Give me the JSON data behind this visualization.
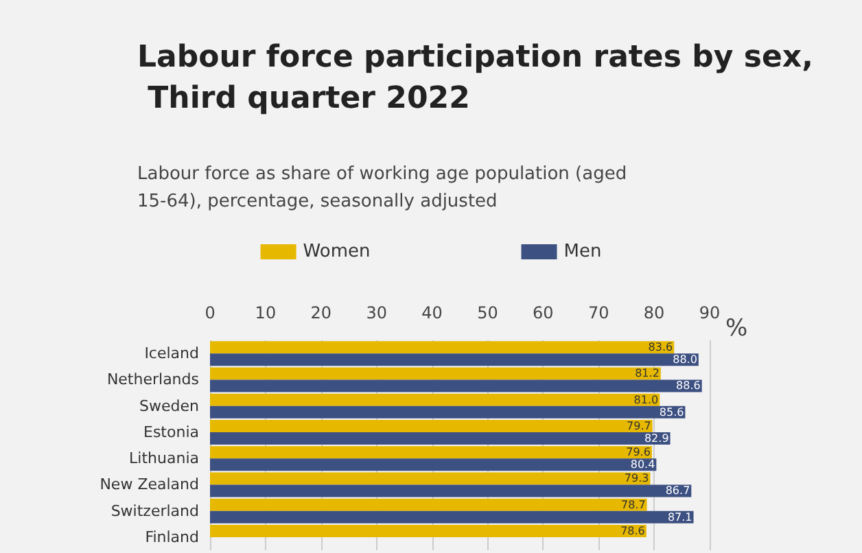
{
  "chart_data": {
    "type": "bar",
    "orientation": "horizontal",
    "title": "Labour force participation rates by sex, Third quarter 2022",
    "subtitle": "Labour force as share of working age population (aged 15-64), percentage, seasonally adjusted",
    "xlabel": "%",
    "categories": [
      "Iceland",
      "Netherlands",
      "Sweden",
      "Estonia",
      "Lithuania",
      "New Zealand",
      "Switzerland",
      "Finland"
    ],
    "series": [
      {
        "name": "Women",
        "color": "#e6b800",
        "values": [
          83.6,
          81.2,
          81.0,
          79.7,
          79.6,
          79.3,
          78.7,
          78.6
        ],
        "value_labels": [
          "83.6",
          "81.2",
          "81.0",
          "79.7",
          "79.6",
          "79.3",
          "78.7",
          "78.6"
        ]
      },
      {
        "name": "Men",
        "color": "#3d5082",
        "values": [
          88.0,
          88.6,
          85.6,
          82.9,
          80.4,
          86.7,
          87.1,
          null
        ],
        "value_labels": [
          "88.0",
          "88.6",
          "85.6",
          "82.9",
          "80.4",
          "86.7",
          "87.1",
          null
        ]
      }
    ],
    "xlim": [
      0,
      90
    ],
    "xticks": [
      0,
      10,
      20,
      30,
      40,
      50,
      60,
      70,
      80,
      90
    ],
    "grid": "x",
    "legend": "top"
  }
}
